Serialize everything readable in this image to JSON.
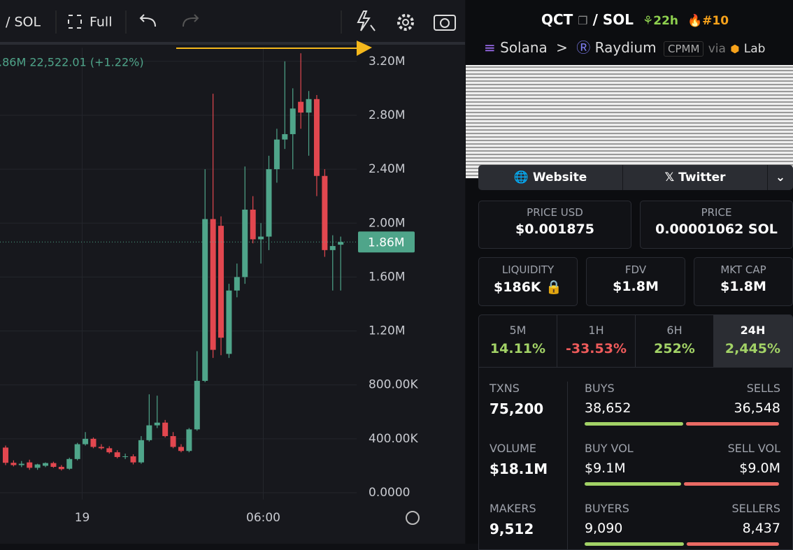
{
  "toolbar": {
    "pair": "/ SOL",
    "full": "Full"
  },
  "chart": {
    "type": "candlestick",
    "legend": ".86M 22,522.01 (+1.22%)",
    "ylim": [
      -50000,
      3300000
    ],
    "yticks": [
      {
        "value": 0,
        "label": "0.0000"
      },
      {
        "value": 400000,
        "label": "400.00K"
      },
      {
        "value": 800000,
        "label": "800.00K"
      },
      {
        "value": 1200000,
        "label": "1.20M"
      },
      {
        "value": 1600000,
        "label": "1.60M"
      },
      {
        "value": 2000000,
        "label": "2.00M"
      },
      {
        "value": 2400000,
        "label": "2.40M"
      },
      {
        "value": 2800000,
        "label": "2.80M"
      },
      {
        "value": 3200000,
        "label": "3.20M"
      }
    ],
    "last_price": {
      "value": 1860000,
      "label": "1.86M"
    },
    "xlim": [
      -0.7,
      44
    ],
    "xticks": [
      {
        "value": 9.6,
        "label": "19"
      },
      {
        "value": 32.3,
        "label": "06:00"
      }
    ],
    "up_color": "#4fa58a",
    "down_color": "#e2474f",
    "candles": [
      {
        "open": 335000,
        "high": 350000,
        "low": 205000,
        "close": 222000
      },
      {
        "open": 222000,
        "high": 240000,
        "low": 195000,
        "close": 205000
      },
      {
        "open": 205000,
        "high": 235000,
        "low": 190000,
        "close": 215000
      },
      {
        "open": 225000,
        "high": 245000,
        "low": 170000,
        "close": 185000
      },
      {
        "open": 185000,
        "high": 215000,
        "low": 170000,
        "close": 210000
      },
      {
        "open": 200000,
        "high": 225000,
        "low": 190000,
        "close": 220000
      },
      {
        "open": 220000,
        "high": 230000,
        "low": 185000,
        "close": 192000
      },
      {
        "open": 192000,
        "high": 205000,
        "low": 165000,
        "close": 175000
      },
      {
        "open": 178000,
        "high": 260000,
        "low": 170000,
        "close": 250000
      },
      {
        "open": 250000,
        "high": 370000,
        "low": 240000,
        "close": 360000
      },
      {
        "open": 360000,
        "high": 450000,
        "low": 350000,
        "close": 400000
      },
      {
        "open": 400000,
        "high": 410000,
        "low": 330000,
        "close": 340000
      },
      {
        "open": 340000,
        "high": 360000,
        "low": 320000,
        "close": 330000
      },
      {
        "open": 330000,
        "high": 345000,
        "low": 290000,
        "close": 300000
      },
      {
        "open": 300000,
        "high": 315000,
        "low": 255000,
        "close": 265000
      },
      {
        "open": 265000,
        "high": 290000,
        "low": 250000,
        "close": 270000
      },
      {
        "open": 270000,
        "high": 285000,
        "low": 210000,
        "close": 225000
      },
      {
        "open": 225000,
        "high": 420000,
        "low": 215000,
        "close": 390000
      },
      {
        "open": 390000,
        "high": 730000,
        "low": 380000,
        "close": 500000
      },
      {
        "open": 500000,
        "high": 720000,
        "low": 480000,
        "close": 520000
      },
      {
        "open": 520000,
        "high": 540000,
        "low": 410000,
        "close": 420000
      },
      {
        "open": 420000,
        "high": 450000,
        "low": 330000,
        "close": 340000
      },
      {
        "open": 340000,
        "high": 360000,
        "low": 300000,
        "close": 310000
      },
      {
        "open": 310000,
        "high": 480000,
        "low": 300000,
        "close": 470000
      },
      {
        "open": 470000,
        "high": 1050000,
        "low": 460000,
        "close": 830000
      },
      {
        "open": 830000,
        "high": 2400000,
        "low": 820000,
        "close": 2030000
      },
      {
        "open": 2030000,
        "high": 2960000,
        "low": 1000000,
        "close": 1060000
      },
      {
        "open": 1980000,
        "high": 2050000,
        "low": 1020000,
        "close": 1150000
      },
      {
        "open": 1030000,
        "high": 1550000,
        "low": 1000000,
        "close": 1500000
      },
      {
        "open": 1500000,
        "high": 1700000,
        "low": 1450000,
        "close": 1600000
      },
      {
        "open": 1600000,
        "high": 2420000,
        "low": 1550000,
        "close": 2100000
      },
      {
        "open": 2100000,
        "high": 2200000,
        "low": 1850000,
        "close": 1880000
      },
      {
        "open": 1880000,
        "high": 2000000,
        "low": 1700000,
        "close": 1900000
      },
      {
        "open": 1900000,
        "high": 2500000,
        "low": 1800000,
        "close": 2400000
      },
      {
        "open": 2400000,
        "high": 2700000,
        "low": 2300000,
        "close": 2620000
      },
      {
        "open": 2620000,
        "high": 3200000,
        "low": 2550000,
        "close": 2660000
      },
      {
        "open": 2660000,
        "high": 3000000,
        "low": 2400000,
        "close": 2850000
      },
      {
        "open": 2900000,
        "high": 3260000,
        "low": 2700000,
        "close": 2820000
      },
      {
        "open": 2820000,
        "high": 2980000,
        "low": 2500000,
        "close": 2920000
      },
      {
        "open": 2920000,
        "high": 2950000,
        "low": 2200000,
        "close": 2350000
      },
      {
        "open": 2350000,
        "high": 2400000,
        "low": 1750000,
        "close": 1800000
      },
      {
        "open": 1800000,
        "high": 1910000,
        "low": 1500000,
        "close": 1830000
      },
      {
        "open": 1840000,
        "high": 1900000,
        "low": 1500000,
        "close": 1860000
      }
    ]
  },
  "pair": {
    "base": "QCT",
    "separator": "/",
    "quote": "SOL",
    "age": "22h",
    "rank": "#10"
  },
  "route": {
    "chain": "Solana",
    "dex": "Raydium",
    "pool": "CPMM",
    "via": "via",
    "launchpad": "Lab"
  },
  "links": [
    "Website",
    "Twitter"
  ],
  "prices": [
    {
      "label": "PRICE USD",
      "value": "$0.001875"
    },
    {
      "label": "PRICE",
      "value": "0.00001062 SOL"
    }
  ],
  "metrics": [
    {
      "label": "LIQUIDITY",
      "value": "$186K"
    },
    {
      "label": "FDV",
      "value": "$1.8M"
    },
    {
      "label": "MKT CAP",
      "value": "$1.8M"
    }
  ],
  "changes": [
    {
      "period": "5M",
      "value": "14.11%"
    },
    {
      "period": "1H",
      "value": "-33.53%"
    },
    {
      "period": "6H",
      "value": "252%"
    },
    {
      "period": "24H",
      "value": "2,445%"
    }
  ],
  "stats": [
    {
      "label": "TXNS",
      "value": "75,200",
      "left_label": "BUYS",
      "left": {
        "value": 38652,
        "label": "38,652"
      },
      "right_label": "SELLS",
      "right": {
        "value": 36548,
        "label": "36,548"
      }
    },
    {
      "label": "VOLUME",
      "value": "$18.1M",
      "left_label": "BUY VOL",
      "left": {
        "value": 9100000,
        "label": "$9.1M"
      },
      "right_label": "SELL VOL",
      "right": {
        "value": 9000000,
        "label": "$9.0M"
      }
    },
    {
      "label": "MAKERS",
      "value": "9,512",
      "left_label": "BUYERS",
      "left": {
        "value": 9090,
        "label": "9,090"
      },
      "right_label": "SELLERS",
      "right": {
        "value": 8437,
        "label": "8,437"
      }
    }
  ]
}
